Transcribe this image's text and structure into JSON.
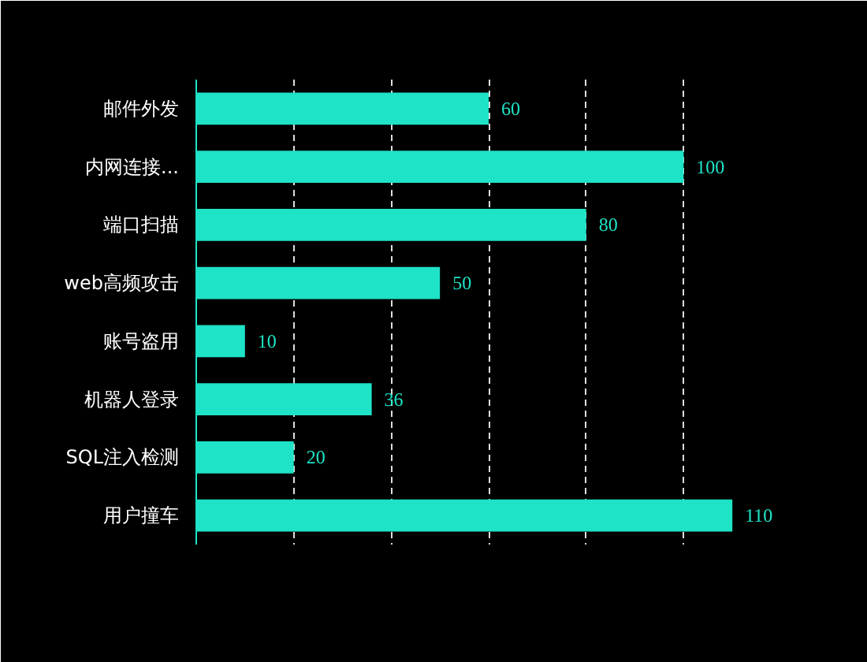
{
  "chart_data": {
    "type": "bar",
    "orientation": "horizontal",
    "categories": [
      "邮件外发",
      "内网连接...",
      "端口扫描",
      "web高频攻击",
      "账号盗用",
      "机器人登录",
      "SQL注入检测",
      "用户撞车"
    ],
    "values": [
      60,
      100,
      80,
      50,
      10,
      36,
      20,
      110
    ],
    "color": "#1ee3c6",
    "xlim": [
      0,
      120
    ],
    "xticks": [
      {
        "value": 20,
        "label": null
      },
      {
        "value": 40,
        "label": null
      },
      {
        "value": 60,
        "label": null
      },
      {
        "value": 80,
        "label": null
      },
      {
        "value": 100,
        "label": null
      },
      {
        "value": 120,
        "label": null
      }
    ],
    "grid": "x",
    "tick_labels": "y",
    "data_labels": true
  }
}
